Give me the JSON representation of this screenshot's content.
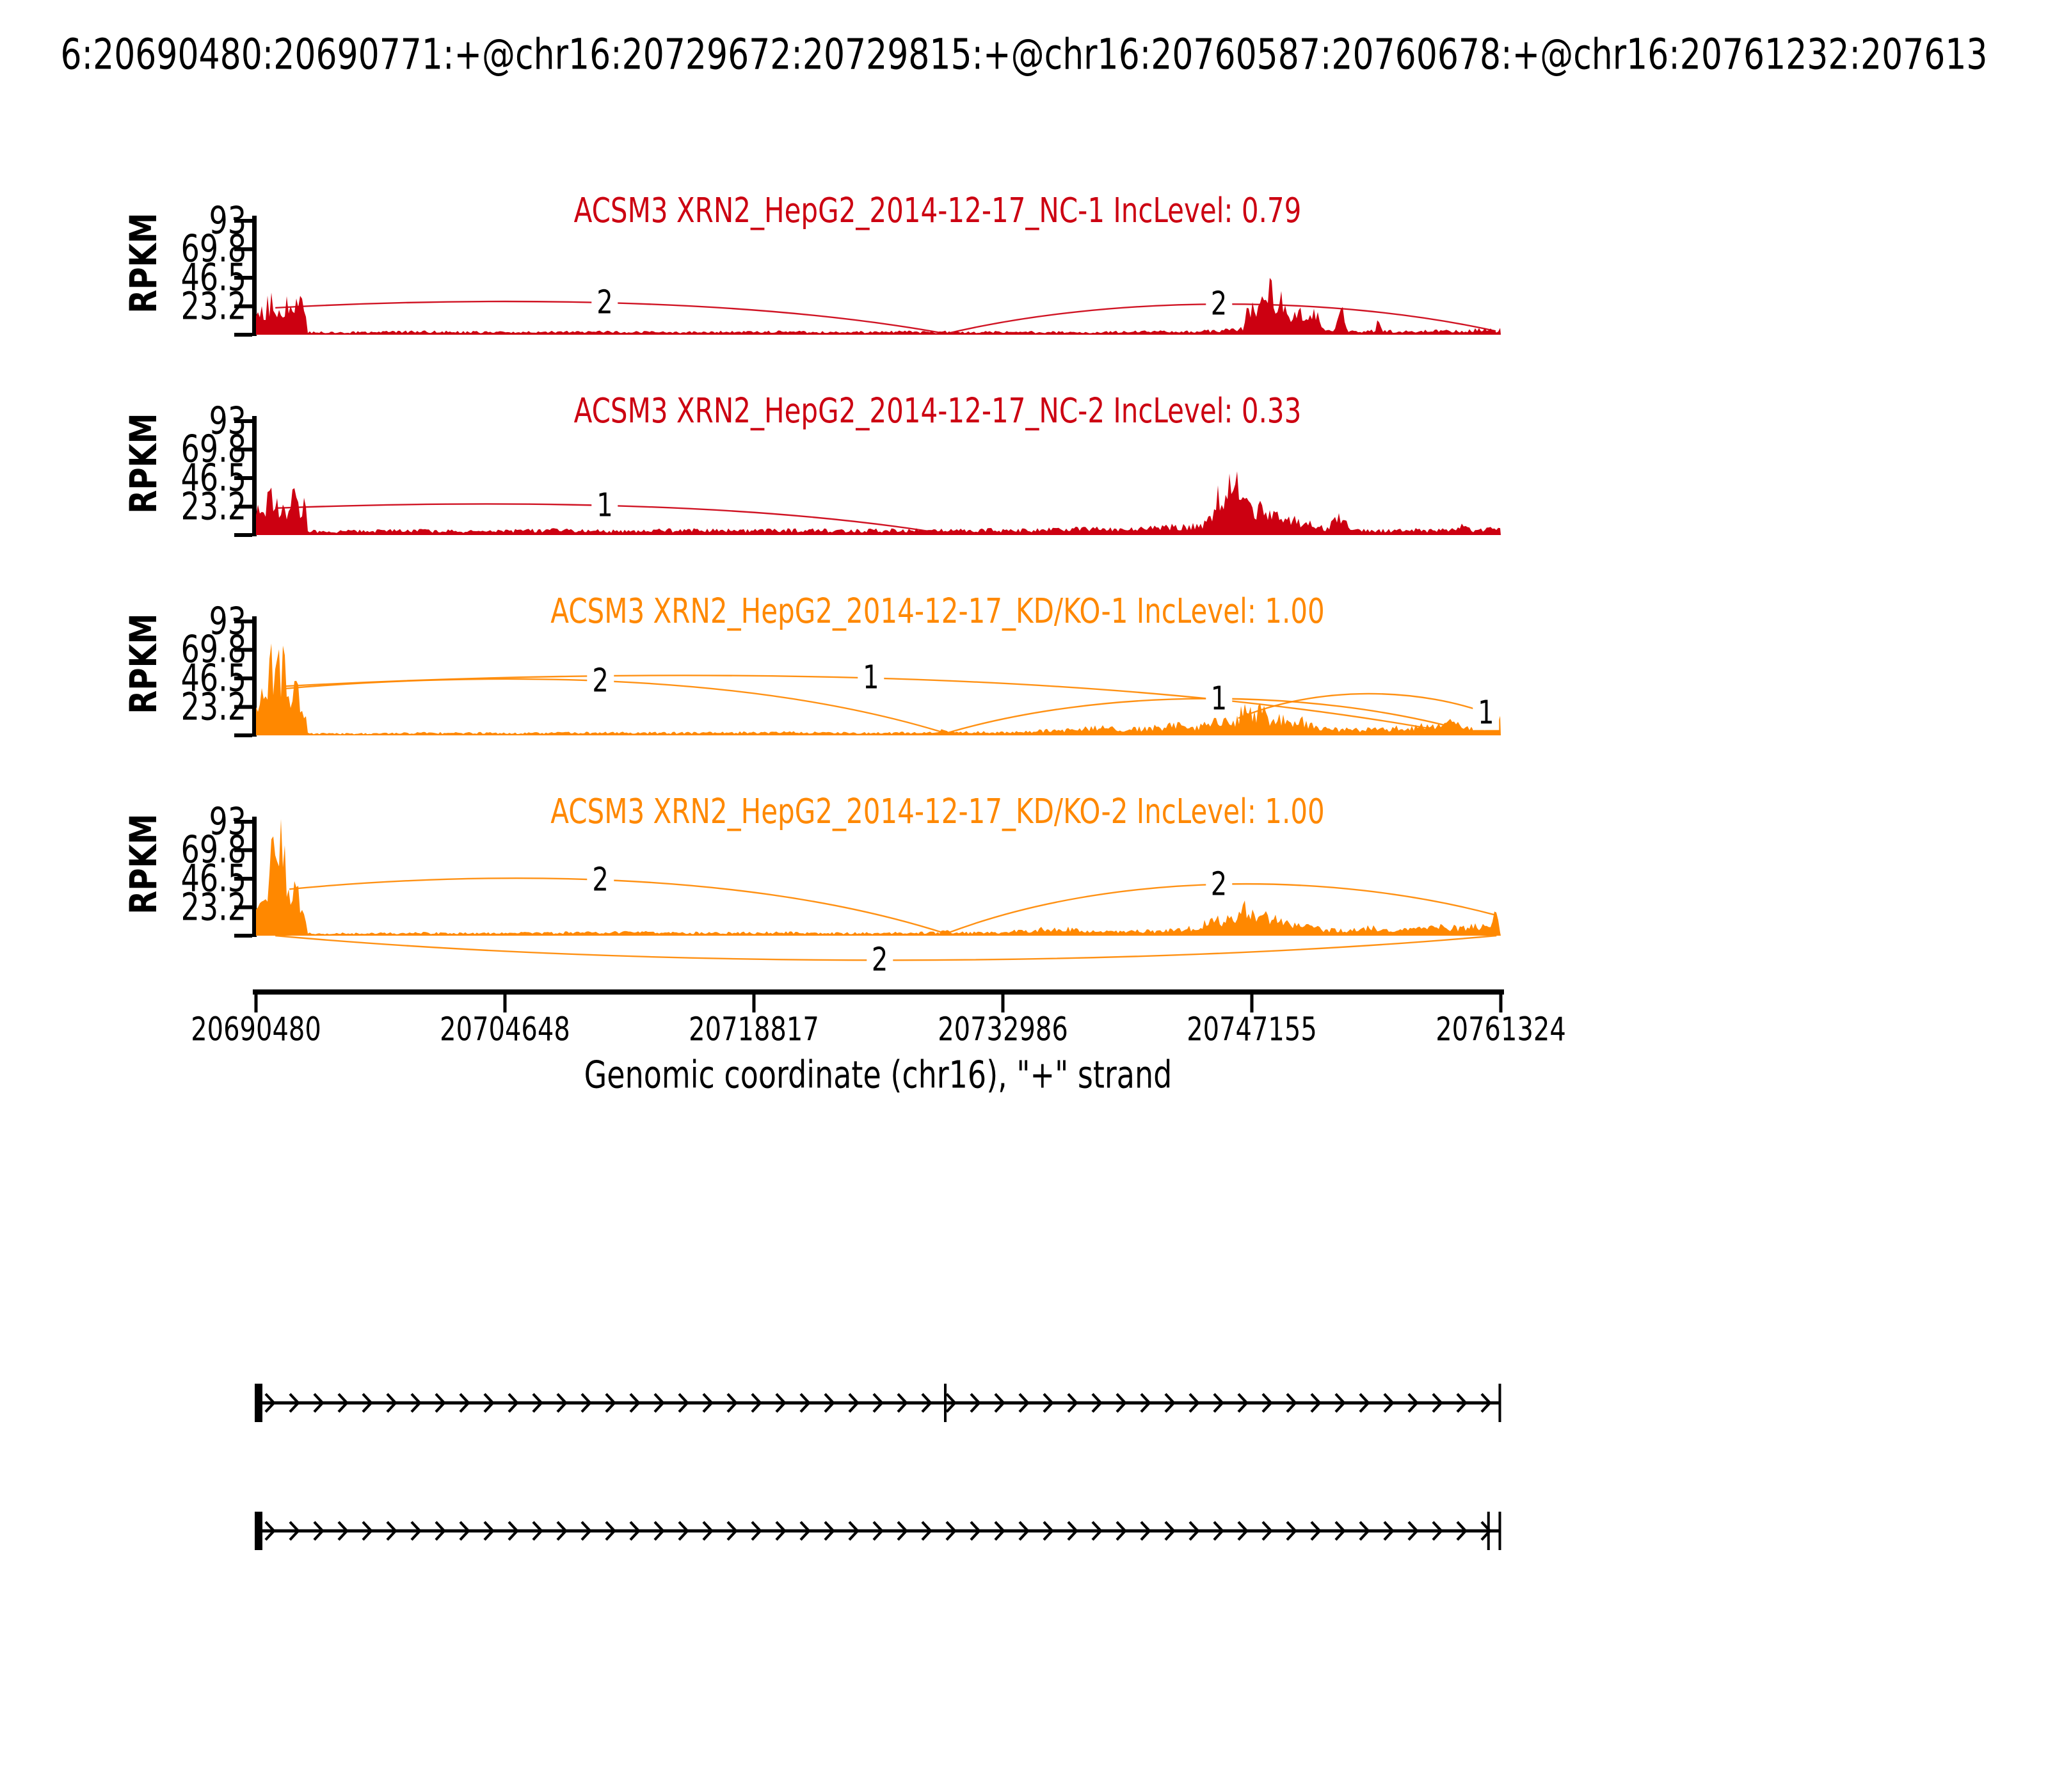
{
  "header": {
    "title": "6:20690480:20690771:+@chr16:20729672:20729815:+@chr16:20760587:20760678:+@chr16:20761232:207613"
  },
  "chart_data": {
    "type": "sashimi",
    "title": "6:20690480:20690771:+@chr16:20729672:20729815:+@chr16:20760587:20760678:+@chr16:20761232:207613",
    "xlabel": "Genomic coordinate (chr16), \"+\" strand",
    "ylabel": "RPKM",
    "x_domain": [
      20690480,
      20761324
    ],
    "x_ticks": [
      "20690480",
      "20704648",
      "20718817",
      "20732986",
      "20747155",
      "20761324"
    ],
    "x_tick_values": [
      20690480,
      20704648,
      20718817,
      20732986,
      20747155,
      20761324
    ],
    "y_ticks": [
      "93",
      "69.8",
      "46.5",
      "23.2"
    ],
    "y_tick_values": [
      93,
      69.8,
      46.5,
      23.2
    ],
    "ylim": [
      0,
      93
    ],
    "colors": {
      "group1": "#CC0011",
      "group2": "#FF8800"
    },
    "tracks": [
      {
        "sample": "ACSM3 XRN2_HepG2_2014-12-17_NC-1",
        "inc_level": "0.79",
        "label": "ACSM3 XRN2_HepG2_2014-12-17_NC-1 IncLevel: 0.79",
        "color": "#CC0011",
        "coverage": [
          [
            0,
            20
          ],
          [
            200,
            27
          ],
          [
            500,
            23
          ],
          [
            800,
            30
          ],
          [
            1100,
            25
          ],
          [
            1400,
            28
          ],
          [
            1700,
            24
          ],
          [
            2000,
            29
          ],
          [
            2300,
            25
          ],
          [
            2600,
            27
          ],
          [
            2850,
            22
          ],
          [
            2950,
            2
          ],
          [
            5000,
            2
          ],
          [
            9000,
            2.5
          ],
          [
            14000,
            2
          ],
          [
            19000,
            2.5
          ],
          [
            24000,
            2
          ],
          [
            29000,
            2.5
          ],
          [
            33000,
            2
          ],
          [
            36500,
            2.5
          ],
          [
            38800,
            2
          ],
          [
            39100,
            4
          ],
          [
            39400,
            2
          ],
          [
            43000,
            2.3
          ],
          [
            47000,
            2
          ],
          [
            51000,
            2.6
          ],
          [
            54500,
            3
          ],
          [
            56200,
            6
          ],
          [
            56500,
            30
          ],
          [
            56800,
            20
          ],
          [
            57100,
            40
          ],
          [
            57400,
            26
          ],
          [
            57700,
            44
          ],
          [
            58000,
            18
          ],
          [
            58400,
            32
          ],
          [
            58800,
            14
          ],
          [
            59300,
            26
          ],
          [
            59800,
            10
          ],
          [
            60300,
            20
          ],
          [
            60700,
            4
          ],
          [
            61400,
            3
          ],
          [
            61800,
            22
          ],
          [
            62100,
            3
          ],
          [
            63700,
            3
          ],
          [
            63900,
            16
          ],
          [
            64100,
            3
          ],
          [
            65500,
            2.5
          ],
          [
            67000,
            3
          ],
          [
            68500,
            3
          ],
          [
            69800,
            4
          ],
          [
            70300,
            7
          ],
          [
            70600,
            3
          ],
          [
            70844,
            8
          ]
        ],
        "junctions": [
          {
            "from": 1100,
            "to": 39192,
            "count": 2,
            "y1": 22,
            "y2": 1,
            "apex": 26,
            "label_at": 19850,
            "side": "top"
          },
          {
            "from": 39335,
            "to": 70550,
            "count": 2,
            "y1": 1,
            "y2": 3,
            "apex": 25,
            "label_at": 54800,
            "side": "top"
          }
        ]
      },
      {
        "sample": "ACSM3 XRN2_HepG2_2014-12-17_NC-2",
        "inc_level": "0.33",
        "label": "ACSM3 XRN2_HepG2_2014-12-17_NC-2 IncLevel: 0.33",
        "color": "#CC0011",
        "coverage": [
          [
            0,
            18
          ],
          [
            250,
            30
          ],
          [
            550,
            24
          ],
          [
            850,
            34
          ],
          [
            1150,
            26
          ],
          [
            1450,
            31
          ],
          [
            1750,
            24
          ],
          [
            2050,
            33
          ],
          [
            2350,
            27
          ],
          [
            2650,
            30
          ],
          [
            2850,
            24
          ],
          [
            2950,
            3
          ],
          [
            5000,
            3
          ],
          [
            9000,
            3.5
          ],
          [
            13000,
            3
          ],
          [
            17000,
            4
          ],
          [
            21000,
            3
          ],
          [
            25000,
            4.5
          ],
          [
            28000,
            3.5
          ],
          [
            31000,
            4
          ],
          [
            34000,
            3.5
          ],
          [
            37000,
            4
          ],
          [
            39500,
            3.5
          ],
          [
            42000,
            4
          ],
          [
            45000,
            5
          ],
          [
            47500,
            6
          ],
          [
            49500,
            5
          ],
          [
            51500,
            7
          ],
          [
            53000,
            8
          ],
          [
            54000,
            10
          ],
          [
            54400,
            18
          ],
          [
            54700,
            40
          ],
          [
            55000,
            30
          ],
          [
            55300,
            48
          ],
          [
            55600,
            36
          ],
          [
            55900,
            46
          ],
          [
            56200,
            28
          ],
          [
            56500,
            38
          ],
          [
            56800,
            20
          ],
          [
            57200,
            30
          ],
          [
            57600,
            14
          ],
          [
            58100,
            26
          ],
          [
            58500,
            10
          ],
          [
            59000,
            18
          ],
          [
            59500,
            8
          ],
          [
            60200,
            12
          ],
          [
            60800,
            5
          ],
          [
            61900,
            18
          ],
          [
            62200,
            4
          ],
          [
            64000,
            3.5
          ],
          [
            66000,
            4
          ],
          [
            68000,
            4.5
          ],
          [
            68600,
            8
          ],
          [
            69200,
            4
          ],
          [
            70100,
            5
          ],
          [
            70844,
            6
          ]
        ],
        "junctions": [
          {
            "from": 1100,
            "to": 39192,
            "count": 1,
            "y1": 22,
            "y2": 1,
            "apex": 24,
            "label_at": 19850,
            "side": "top"
          }
        ]
      },
      {
        "sample": "ACSM3 XRN2_HepG2_2014-12-17_KD/KO-1",
        "inc_level": "1.00",
        "label": "ACSM3 XRN2_HepG2_2014-12-17_KD/KO-1 IncLevel: 1.00",
        "color": "#FF8800",
        "coverage": [
          [
            0,
            22
          ],
          [
            150,
            38
          ],
          [
            400,
            30
          ],
          [
            650,
            52
          ],
          [
            850,
            68
          ],
          [
            1050,
            58
          ],
          [
            1250,
            72
          ],
          [
            1450,
            60
          ],
          [
            1650,
            66
          ],
          [
            1850,
            42
          ],
          [
            2050,
            32
          ],
          [
            2250,
            46
          ],
          [
            2500,
            34
          ],
          [
            2750,
            22
          ],
          [
            2950,
            1.5
          ],
          [
            6000,
            1.5
          ],
          [
            10000,
            2
          ],
          [
            15000,
            1.8
          ],
          [
            20000,
            2.2
          ],
          [
            25000,
            2
          ],
          [
            29000,
            2.5
          ],
          [
            33000,
            2.2
          ],
          [
            36000,
            2
          ],
          [
            38800,
            2.5
          ],
          [
            39150,
            6
          ],
          [
            39500,
            2.5
          ],
          [
            42000,
            2.5
          ],
          [
            44500,
            3.5
          ],
          [
            46500,
            5
          ],
          [
            48000,
            7
          ],
          [
            49500,
            5
          ],
          [
            51000,
            7
          ],
          [
            52500,
            9
          ],
          [
            53600,
            7
          ],
          [
            54380,
            12
          ],
          [
            55000,
            12
          ],
          [
            55700,
            13
          ],
          [
            56100,
            20
          ],
          [
            56400,
            26
          ],
          [
            56800,
            16
          ],
          [
            57300,
            23
          ],
          [
            57700,
            12
          ],
          [
            58300,
            17
          ],
          [
            58900,
            9
          ],
          [
            59600,
            13
          ],
          [
            60300,
            7
          ],
          [
            61200,
            6
          ],
          [
            62500,
            5
          ],
          [
            64000,
            6
          ],
          [
            65500,
            7
          ],
          [
            67000,
            9
          ],
          [
            68000,
            12
          ],
          [
            68800,
            8
          ],
          [
            69800,
            6
          ],
          [
            70500,
            16
          ],
          [
            70844,
            14
          ]
        ],
        "junctions": [
          {
            "from": 1500,
            "to": 39192,
            "count": 2,
            "y1": 38,
            "y2": 2,
            "apex": 44,
            "label_at": 19600,
            "side": "top"
          },
          {
            "from": 1500,
            "to": 67400,
            "count": 1,
            "y1": 40,
            "y2": 4,
            "apex": 47,
            "label_at": 35000,
            "side": "top"
          },
          {
            "from": 39335,
            "to": 68800,
            "count": 1,
            "y1": 2,
            "y2": 4,
            "apex": 30,
            "label_at": 54800,
            "side": "top"
          },
          {
            "from": 55900,
            "to": 70650,
            "count": 1,
            "y1": 14,
            "y2": 15,
            "apex": 34,
            "label_at": 70000,
            "side": "top"
          }
        ]
      },
      {
        "sample": "ACSM3 XRN2_HepG2_2014-12-17_KD/KO-2",
        "inc_level": "1.00",
        "label": "ACSM3 XRN2_HepG2_2014-12-17_KD/KO-2 IncLevel: 1.00",
        "color": "#FF8800",
        "coverage": [
          [
            0,
            18
          ],
          [
            200,
            34
          ],
          [
            450,
            26
          ],
          [
            700,
            48
          ],
          [
            900,
            76
          ],
          [
            1050,
            58
          ],
          [
            1200,
            88
          ],
          [
            1350,
            68
          ],
          [
            1500,
            84
          ],
          [
            1700,
            52
          ],
          [
            1900,
            44
          ],
          [
            2100,
            58
          ],
          [
            2350,
            38
          ],
          [
            2600,
            24
          ],
          [
            2850,
            15
          ],
          [
            2950,
            2
          ],
          [
            6000,
            1.8
          ],
          [
            10000,
            2.2
          ],
          [
            14000,
            2
          ],
          [
            18000,
            2.5
          ],
          [
            22000,
            2.8
          ],
          [
            26000,
            2.2
          ],
          [
            30000,
            2.5
          ],
          [
            33500,
            2
          ],
          [
            36500,
            2.3
          ],
          [
            38900,
            2.5
          ],
          [
            39200,
            6
          ],
          [
            39550,
            2.5
          ],
          [
            42000,
            2.5
          ],
          [
            43700,
            4
          ],
          [
            44500,
            6
          ],
          [
            45300,
            5
          ],
          [
            46200,
            7
          ],
          [
            47000,
            4
          ],
          [
            49000,
            3
          ],
          [
            51000,
            4
          ],
          [
            53000,
            6
          ],
          [
            54380,
            13
          ],
          [
            55000,
            13.5
          ],
          [
            55750,
            13
          ],
          [
            56100,
            20
          ],
          [
            56400,
            26
          ],
          [
            56800,
            17
          ],
          [
            57300,
            24
          ],
          [
            57700,
            11
          ],
          [
            58300,
            16
          ],
          [
            58900,
            8
          ],
          [
            59700,
            10
          ],
          [
            60500,
            6
          ],
          [
            62000,
            5
          ],
          [
            63500,
            7
          ],
          [
            65000,
            5
          ],
          [
            66500,
            6
          ],
          [
            67500,
            8
          ],
          [
            68500,
            7
          ],
          [
            69300,
            9
          ],
          [
            70200,
            8
          ],
          [
            70550,
            18
          ],
          [
            70844,
            3
          ]
        ],
        "junctions": [
          {
            "from": 1900,
            "to": 39192,
            "count": 2,
            "y1": 38,
            "y2": 2,
            "apex": 45,
            "label_at": 19600,
            "side": "top"
          },
          {
            "from": 39335,
            "to": 70500,
            "count": 2,
            "y1": 2,
            "y2": 17,
            "apex": 42,
            "label_at": 54800,
            "side": "top"
          },
          {
            "from": 1100,
            "to": 70600,
            "count": 2,
            "y1": 0,
            "y2": 0,
            "apex": -20,
            "label_at": 35500,
            "side": "bottom"
          }
        ]
      }
    ],
    "transcripts": [
      {
        "strand": "+",
        "exons": [
          [
            20690480,
            20690771
          ],
          [
            20729672,
            20729815
          ],
          [
            20761232,
            20761324
          ]
        ]
      },
      {
        "strand": "+",
        "exons": [
          [
            20690480,
            20690771
          ],
          [
            20760587,
            20760678
          ],
          [
            20761232,
            20761324
          ]
        ]
      }
    ],
    "legend_position": "none",
    "grid": false
  }
}
